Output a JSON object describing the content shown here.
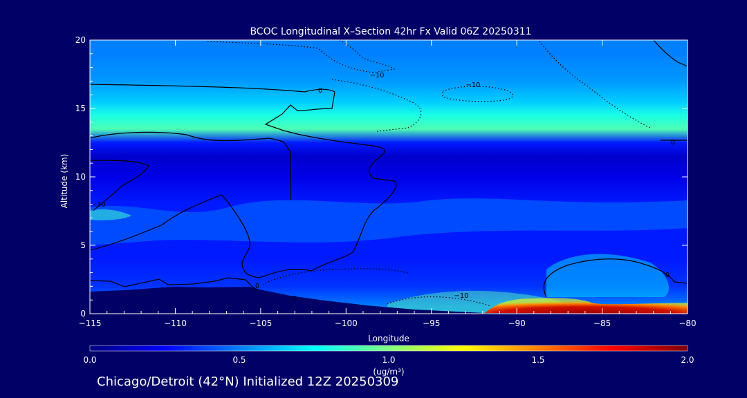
{
  "chart_data": {
    "type": "heatmap",
    "title": "BCOC Longitudinal X–Section 42hr  Fx Valid 06Z 20250311",
    "xlabel": "Longitude",
    "ylabel": "Altitude (km)",
    "xlim": [
      -115,
      -80
    ],
    "ylim": [
      0,
      20
    ],
    "x_ticks": [
      "−115",
      "−110",
      "−105",
      "−100",
      "−95",
      "−90",
      "−85",
      "−80"
    ],
    "x_tick_values": [
      -115,
      -110,
      -105,
      -100,
      -95,
      -90,
      -85,
      -80
    ],
    "y_ticks": [
      "0",
      "5",
      "10",
      "15",
      "20"
    ],
    "y_tick_values": [
      0,
      5,
      10,
      15,
      20
    ],
    "colorbar": {
      "min": 0.0,
      "max": 2.0,
      "tick_labels": [
        "0.0",
        "0.5",
        "1.0",
        "1.5",
        "2.0"
      ],
      "tick_values": [
        0.0,
        0.5,
        1.0,
        1.5,
        2.0
      ],
      "unit_label": "(ug/m³)",
      "colors": [
        "#000080",
        "#0000ff",
        "#0080ff",
        "#00ffff",
        "#80ff80",
        "#ffff00",
        "#ff8000",
        "#ff0000",
        "#800000"
      ]
    },
    "altitude_profile": {
      "altitudes_km": [
        0.5,
        2,
        4,
        6,
        8,
        10,
        11.5,
        12.5,
        13.5,
        14.5,
        15.5,
        17,
        19,
        20
      ],
      "concentration": [
        0.5,
        0.35,
        0.3,
        0.3,
        0.3,
        0.2,
        0.15,
        0.3,
        0.9,
        0.8,
        0.65,
        0.55,
        0.5,
        0.5
      ]
    },
    "hotspot": {
      "lon_range": [
        -92,
        -80
      ],
      "alt_range_km": [
        0,
        1.3
      ],
      "concentration": 1.9
    },
    "contour_labels": [
      "0",
      "−10",
      "−10",
      "0",
      "−10",
      "0",
      "0",
      "−10",
      "0"
    ],
    "annotation": "Chicago/Detroit (42°N) Initialized 12Z 20250309"
  }
}
